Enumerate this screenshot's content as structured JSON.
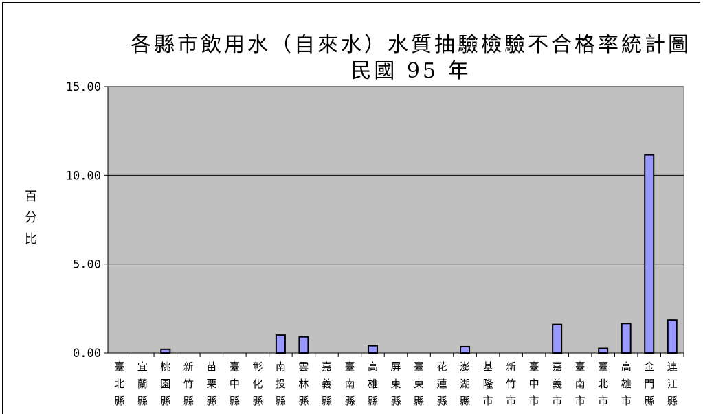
{
  "chart_data": {
    "type": "bar",
    "title": "各縣市飲用水（自來水）水質抽驗檢驗不合格率統計圖",
    "subtitle": "民國 95 年",
    "ylabel": "百分比",
    "xlabel": "",
    "ylim": [
      0,
      15
    ],
    "yticks": [
      "0.00",
      "5.00",
      "10.00",
      "15.00"
    ],
    "ytick_values": [
      0,
      5,
      10,
      15
    ],
    "grid": true,
    "categories": [
      "臺北縣",
      "宜蘭縣",
      "桃園縣",
      "新竹縣",
      "苗栗縣",
      "臺中縣",
      "彰化縣",
      "南投縣",
      "雲林縣",
      "嘉義縣",
      "臺南縣",
      "高雄縣",
      "屏東縣",
      "臺東縣",
      "花蓮縣",
      "澎湖縣",
      "基隆市",
      "新竹市",
      "臺中市",
      "嘉義市",
      "臺南市",
      "臺北市",
      "高雄市",
      "金門縣",
      "連江縣"
    ],
    "values": [
      0,
      0,
      0.2,
      0,
      0,
      0,
      0,
      1.0,
      0.9,
      0,
      0,
      0.4,
      0,
      0,
      0,
      0.35,
      0,
      0,
      0,
      1.6,
      0,
      0.25,
      1.65,
      11.15,
      1.85
    ],
    "colors": {
      "plot_bg": "#c0c0c0",
      "bar_fill": "#9999ff",
      "bar_stroke": "#000000",
      "grid": "#000000"
    }
  }
}
